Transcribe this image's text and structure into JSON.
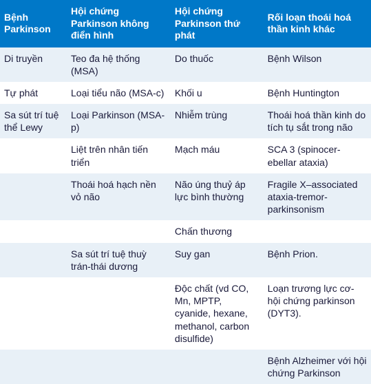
{
  "table": {
    "header_bg": "#0078c8",
    "header_fg": "#ffffff",
    "row_alt_bg": "#e8f0f7",
    "row_bg": "#ffffff",
    "text_color": "#1a1a3a",
    "columns": [
      {
        "label": "Bệnh Parkinson",
        "width": "18%"
      },
      {
        "label": "Hội chứng Parkinson không điển hình",
        "width": "28%"
      },
      {
        "label": "Hội chứng Parkinson thứ phát",
        "width": "25%"
      },
      {
        "label": "Rối loạn thoái hoá thần kinh khác",
        "width": "29%"
      }
    ],
    "rows": [
      [
        "Di truyền",
        "Teo đa hệ thống (MSA)",
        "Do thuốc",
        "Bệnh Wilson"
      ],
      [
        "Tự phát",
        "Loại tiểu não (MSA-c)",
        "Khối u",
        "Bệnh Huntington"
      ],
      [
        "Sa sút trí tuệ thể Lewy",
        "Loại Parkinson (MSA-p)",
        "Nhiễm trùng",
        "Thoái hoá thần kinh do tích tụ sắt trong não"
      ],
      [
        "",
        "Liệt trên nhân tiến triển",
        "Mạch máu",
        "SCA 3 (spinocer-ebellar ataxia)"
      ],
      [
        "",
        "Thoái hoá hạch nền vỏ não",
        "Não úng thuỷ áp lực bình thường",
        "Fragile X–associated ataxia-tremor-parkinsonism"
      ],
      [
        "",
        "",
        "Chấn thương",
        ""
      ],
      [
        "",
        "Sa sút trí tuệ thuỳ trán-thái dương",
        "Suy gan",
        "Bệnh Prion."
      ],
      [
        "",
        "",
        "Độc chất (vd CO, Mn, MPTP, cyanide, hexane, methanol, carbon disulfide)",
        "Loạn trương lực cơ-hội chứng parkinson (DYT3)."
      ],
      [
        "",
        "",
        "",
        "Bệnh Alzheimer với hội chứng Parkinson"
      ]
    ]
  }
}
